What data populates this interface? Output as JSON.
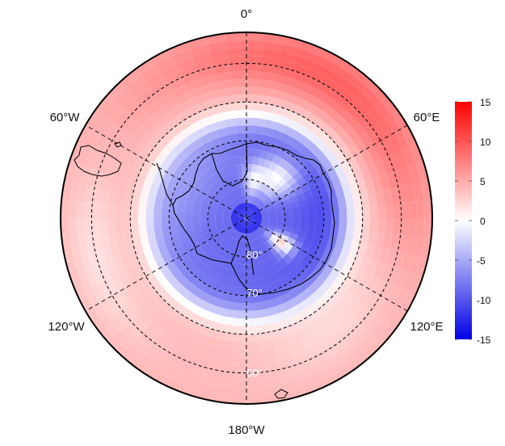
{
  "map": {
    "projection": "south-polar-stereographic",
    "lon_labels": {
      "top": "0°",
      "upper_left": "60°W",
      "upper_right": "60°E",
      "lower_left": "120°W",
      "lower_right": "120°E",
      "bottom": "180°W"
    },
    "lat_labels": [
      "80°",
      "70°",
      "60°",
      "50°"
    ],
    "graticule_latitudes": [
      -80,
      -70,
      -60,
      -50
    ],
    "graticule_style": "dashed",
    "colors": {
      "negative": "#0000e6",
      "zero": "#ffffff",
      "positive": "#ff0000",
      "coastline": "#000000"
    }
  },
  "colorbar": {
    "min": -15,
    "max": 15,
    "tick_labels": [
      "15",
      "10",
      "5",
      "0",
      "-5",
      "-10",
      "-15"
    ],
    "position": "right"
  }
}
